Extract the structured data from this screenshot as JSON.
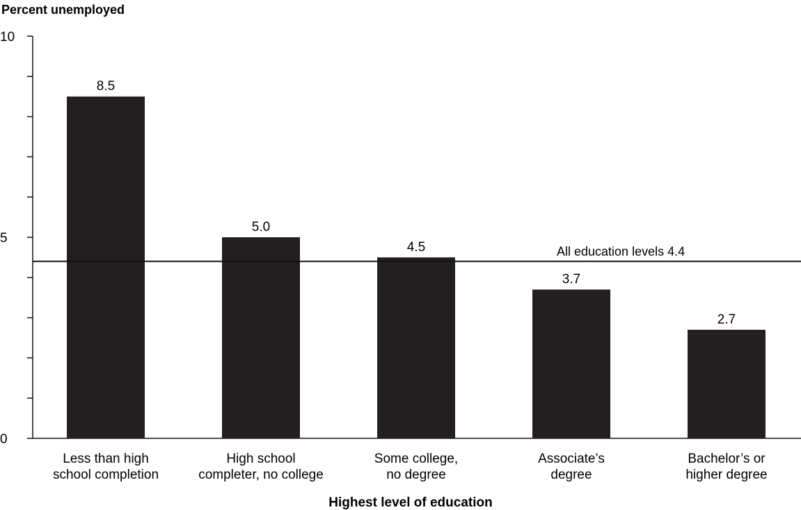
{
  "chart_data": {
    "type": "bar",
    "ylabel": "Percent unemployed",
    "xlabel": "Highest level of education",
    "ylim": [
      0,
      10
    ],
    "yticks": [
      0,
      5,
      10
    ],
    "ytick_labels": [
      "0",
      "5",
      "10"
    ],
    "categories": [
      [
        "Less than high",
        "school completion"
      ],
      [
        "High school",
        "completer, no college"
      ],
      [
        "Some college,",
        "no degree"
      ],
      [
        "Associate’s",
        "degree"
      ],
      [
        "Bachelor’s or",
        "higher degree"
      ]
    ],
    "values": [
      8.5,
      5.0,
      4.5,
      3.7,
      2.7
    ],
    "value_labels": [
      "8.5",
      "5.0",
      "4.5",
      "3.7",
      "2.7"
    ],
    "reference_line": {
      "value": 4.4,
      "label": "All education levels 4.4"
    },
    "bar_color": "#231f20",
    "grid": false
  }
}
